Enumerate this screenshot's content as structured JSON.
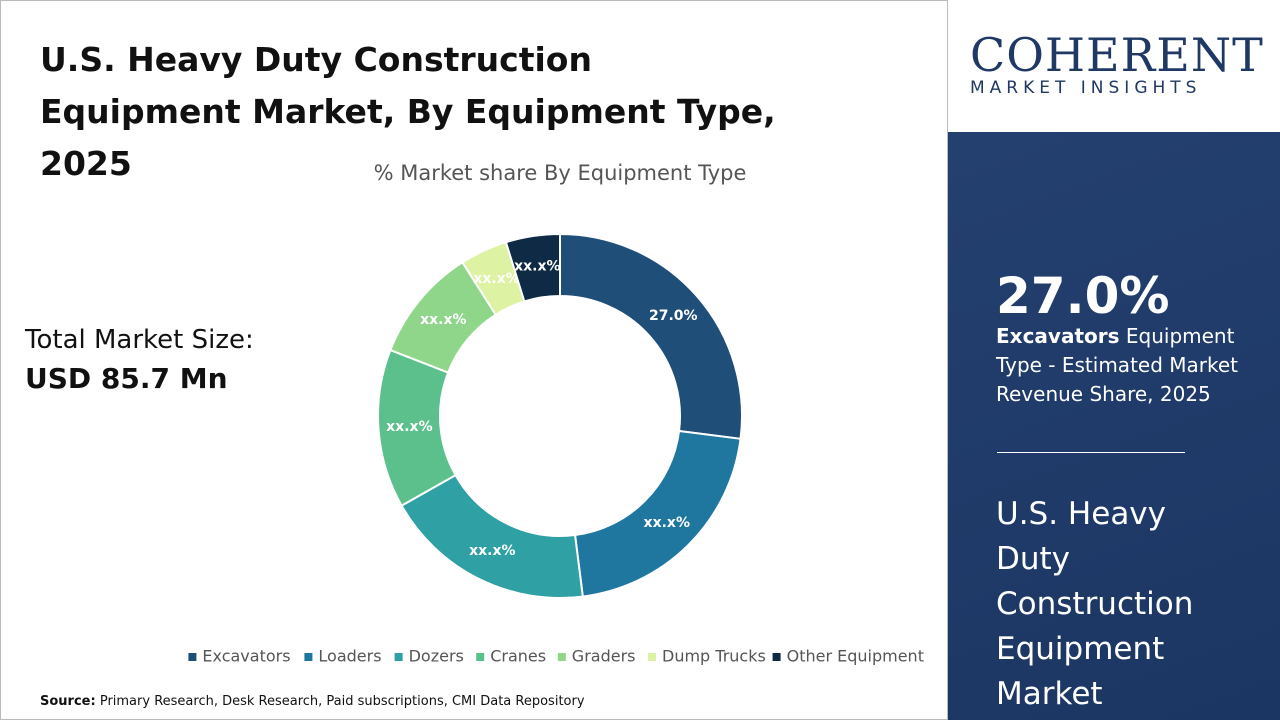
{
  "chart_data": {
    "type": "donut",
    "title": "U.S. Heavy Duty Construction Equipment Market, By Equipment Type, 2025",
    "subtitle": "% Market share By Equipment Type",
    "categories": [
      "Excavators",
      "Loaders",
      "Dozers",
      "Cranes",
      "Graders",
      "Dump Trucks",
      "Other Equipment"
    ],
    "values": [
      27.0,
      21.0,
      18.8,
      14.1,
      10.1,
      4.2,
      4.8
    ],
    "value_labels": [
      "27.0%",
      "xx.x%",
      "xx.x%",
      "xx.x%",
      "xx.x%",
      "xx.x%",
      "xx.x%"
    ],
    "colors": [
      "#1f4e79",
      "#1f77a0",
      "#2fa0a3",
      "#5cc08c",
      "#8fd68a",
      "#ddf2a2",
      "#0e2a45"
    ],
    "legend": "bottom"
  },
  "market_size": {
    "label": "Total Market Size:",
    "value": "USD 85.7 Mn"
  },
  "source": {
    "label": "Source:",
    "text": "Primary Research, Desk Research, Paid subscriptions, CMI Data Repository"
  },
  "logo": {
    "name": "COHERENT",
    "tagline": "MARKET INSIGHTS"
  },
  "sidebar": {
    "highlight": "27.0%",
    "segment": "Excavators",
    "description": "Equipment Type - Estimated Market Revenue Share, 2025",
    "market_title": "U.S. Heavy Duty Construction Equipment Market"
  }
}
